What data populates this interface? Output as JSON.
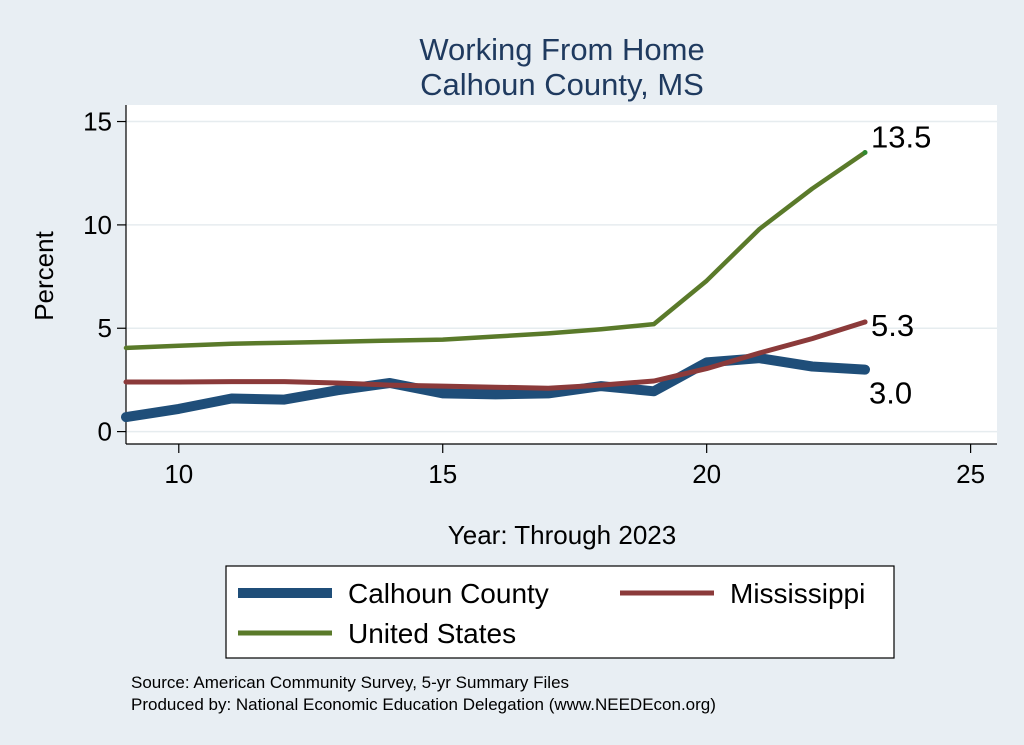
{
  "chart_data": {
    "type": "line",
    "title": [
      "Working From Home",
      "Calhoun County, MS"
    ],
    "xlabel": "Year: Through 2023",
    "ylabel": "Percent",
    "xlim": [
      9,
      25.5
    ],
    "ylim": [
      -0.6,
      15.8
    ],
    "xticks": [
      10,
      15,
      20,
      25
    ],
    "yticks": [
      0,
      5,
      10,
      15
    ],
    "grid": "horizontal",
    "legend_position": "bottom",
    "colors": {
      "background": "#e8eef3",
      "plot": "#ffffff",
      "calhoun": "#1f4e79",
      "mississippi": "#8b3a3a",
      "us": "#5a7a2a",
      "title": "#1f3a5f"
    },
    "series": [
      {
        "name": "Calhoun County",
        "color": "#1f4e79",
        "x": [
          9,
          10,
          11,
          12,
          13,
          14,
          15,
          16,
          17,
          18,
          19,
          20,
          21,
          22,
          23
        ],
        "values": [
          0.7,
          1.1,
          1.6,
          1.55,
          2.0,
          2.35,
          1.85,
          1.8,
          1.85,
          2.2,
          1.95,
          3.35,
          3.55,
          3.15,
          3.0
        ],
        "end_label": "3.0"
      },
      {
        "name": "Mississippi",
        "color": "#8b3a3a",
        "x": [
          9,
          10,
          11,
          12,
          13,
          14,
          15,
          16,
          17,
          18,
          19,
          20,
          21,
          22,
          23
        ],
        "values": [
          2.4,
          2.4,
          2.42,
          2.42,
          2.35,
          2.25,
          2.2,
          2.15,
          2.1,
          2.25,
          2.45,
          3.05,
          3.8,
          4.5,
          5.3
        ],
        "end_label": "5.3"
      },
      {
        "name": "United States",
        "color": "#5a7a2a",
        "x": [
          9,
          10,
          11,
          12,
          13,
          14,
          15,
          16,
          17,
          18,
          19,
          20,
          21,
          22,
          23
        ],
        "values": [
          4.05,
          4.15,
          4.25,
          4.3,
          4.35,
          4.4,
          4.45,
          4.6,
          4.75,
          4.95,
          5.2,
          7.3,
          9.8,
          11.75,
          13.5
        ],
        "end_label": "13.5"
      }
    ],
    "notes": [
      "Source: American Community Survey, 5-yr Summary Files",
      "Produced by: National Economic Education Delegation (www.NEEDEcon.org)"
    ]
  }
}
